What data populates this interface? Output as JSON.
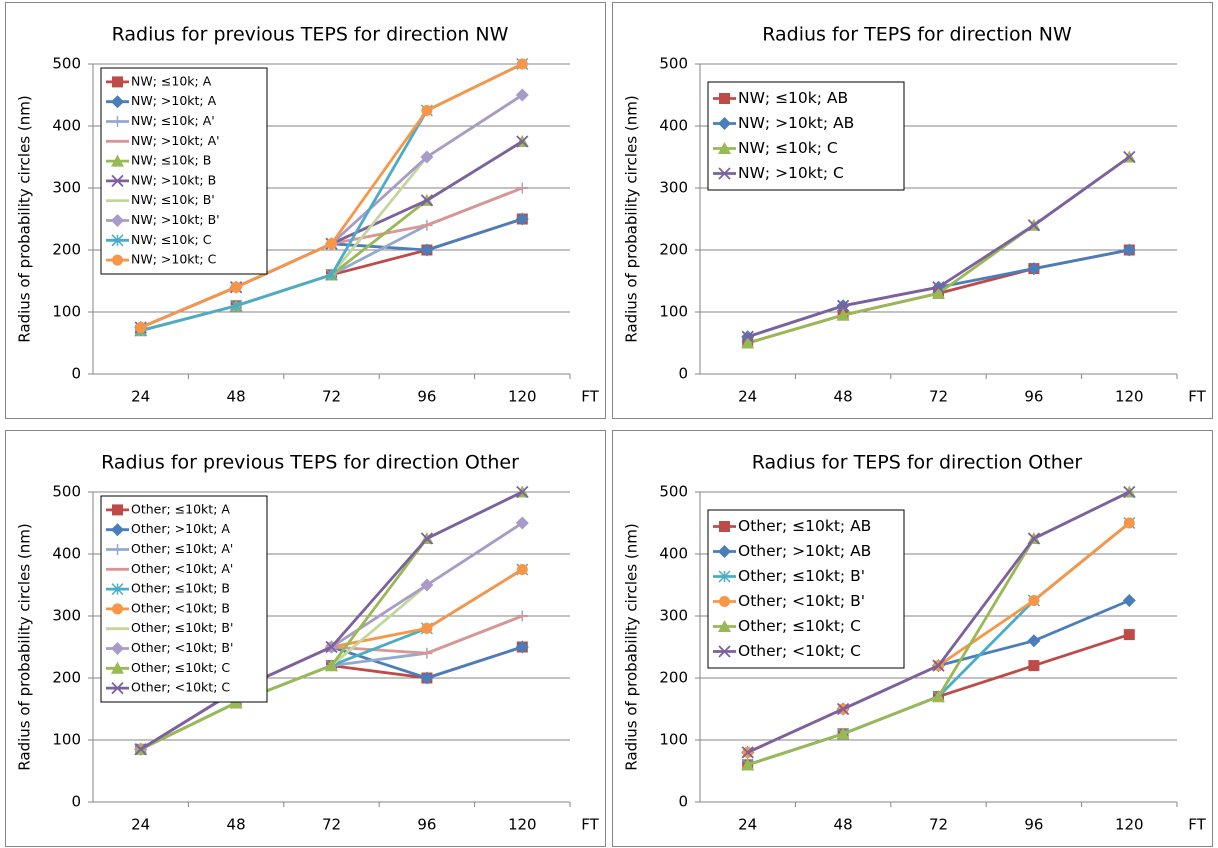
{
  "chart_data": [
    {
      "type": "line",
      "title": "Radius for previous TEPS for direction NW",
      "y_label": "Radius of probability circles (nm)",
      "x_label": "FT",
      "categories": [
        "24",
        "48",
        "72",
        "96",
        "120"
      ],
      "ylim": [
        0,
        500
      ],
      "yticks": [
        0,
        100,
        200,
        300,
        400,
        500
      ],
      "grid": true,
      "legend": "upper left",
      "series": [
        {
          "name": "NW; ≤10k; A",
          "color": "#be4b48",
          "marker": "square",
          "values": [
            70,
            110,
            160,
            200,
            250
          ]
        },
        {
          "name": "NW; >10kt; A",
          "color": "#4a7ebb",
          "marker": "diamond",
          "values": [
            75,
            140,
            210,
            200,
            250
          ]
        },
        {
          "name": "NW; ≤10k; A'",
          "color": "#93a9cf",
          "marker": "plus",
          "values": [
            70,
            110,
            160,
            240,
            300
          ]
        },
        {
          "name": "NW; >10kt; A'",
          "color": "#d99694",
          "marker": "dash",
          "values": [
            75,
            140,
            210,
            240,
            300
          ]
        },
        {
          "name": "NW; ≤10k; B",
          "color": "#98b954",
          "marker": "triangle",
          "values": [
            70,
            110,
            160,
            280,
            375
          ]
        },
        {
          "name": "NW; >10kt; B",
          "color": "#7d60a0",
          "marker": "x",
          "values": [
            75,
            140,
            210,
            280,
            375
          ]
        },
        {
          "name": "NW; ≤10k; B'",
          "color": "#c3d69b",
          "marker": "none",
          "values": [
            70,
            110,
            160,
            350,
            450
          ]
        },
        {
          "name": "NW; >10kt; B'",
          "color": "#a99bc7",
          "marker": "diamond",
          "values": [
            75,
            140,
            210,
            350,
            450
          ]
        },
        {
          "name": "NW; ≤10k; C",
          "color": "#4bacc6",
          "marker": "asterisk",
          "values": [
            70,
            110,
            160,
            425,
            500
          ]
        },
        {
          "name": "NW; >10kt; C",
          "color": "#f79646",
          "marker": "circle",
          "values": [
            75,
            140,
            210,
            425,
            500
          ]
        }
      ]
    },
    {
      "type": "line",
      "title": "Radius for TEPS for direction NW",
      "y_label": "Radius of probability circles (nm)",
      "x_label": "FT",
      "categories": [
        "24",
        "48",
        "72",
        "96",
        "120"
      ],
      "ylim": [
        0,
        500
      ],
      "yticks": [
        0,
        100,
        200,
        300,
        400,
        500
      ],
      "grid": true,
      "legend": "upper left",
      "series": [
        {
          "name": "NW; ≤10k; AB",
          "color": "#be4b48",
          "marker": "square",
          "values": [
            50,
            95,
            130,
            170,
            200
          ]
        },
        {
          "name": "NW; >10kt; AB",
          "color": "#4a7ebb",
          "marker": "diamond",
          "values": [
            60,
            110,
            140,
            170,
            200
          ]
        },
        {
          "name": "NW; ≤10k; C",
          "color": "#98b954",
          "marker": "triangle",
          "values": [
            50,
            95,
            130,
            240,
            350
          ]
        },
        {
          "name": "NW; >10kt; C",
          "color": "#7d60a0",
          "marker": "x",
          "values": [
            60,
            110,
            140,
            240,
            350
          ]
        }
      ]
    },
    {
      "type": "line",
      "title": "Radius for previous TEPS for direction Other",
      "y_label": "Radius of probability circles (nm)",
      "x_label": "FT",
      "categories": [
        "24",
        "48",
        "72",
        "96",
        "120"
      ],
      "ylim": [
        0,
        500
      ],
      "yticks": [
        0,
        100,
        200,
        300,
        400,
        500
      ],
      "grid": true,
      "legend": "upper left",
      "series": [
        {
          "name": "Other; ≤10kt; A",
          "color": "#be4b48",
          "marker": "square",
          "values": [
            85,
            160,
            220,
            200,
            250
          ]
        },
        {
          "name": "Other; >10kt; A",
          "color": "#4a7ebb",
          "marker": "diamond",
          "values": [
            85,
            180,
            250,
            200,
            250
          ]
        },
        {
          "name": "Other; ≤10kt; A'",
          "color": "#93a9cf",
          "marker": "plus",
          "values": [
            85,
            160,
            220,
            240,
            300
          ]
        },
        {
          "name": "Other; <10kt; A'",
          "color": "#d99694",
          "marker": "dash",
          "values": [
            85,
            180,
            250,
            240,
            300
          ]
        },
        {
          "name": "Other; ≤10kt; B",
          "color": "#4bacc6",
          "marker": "asterisk",
          "values": [
            85,
            160,
            220,
            280,
            375
          ]
        },
        {
          "name": "Other; <10kt; B",
          "color": "#f79646",
          "marker": "circle",
          "values": [
            85,
            180,
            250,
            280,
            375
          ]
        },
        {
          "name": "Other; ≤10kt; B'",
          "color": "#c3d69b",
          "marker": "none",
          "values": [
            85,
            160,
            220,
            350,
            450
          ]
        },
        {
          "name": "Other; <10kt; B'",
          "color": "#a99bc7",
          "marker": "diamond",
          "values": [
            85,
            180,
            250,
            350,
            450
          ]
        },
        {
          "name": "Other; ≤10kt; C",
          "color": "#98b954",
          "marker": "triangle",
          "values": [
            85,
            160,
            220,
            425,
            500
          ]
        },
        {
          "name": "Other; <10kt; C",
          "color": "#7d60a0",
          "marker": "x",
          "values": [
            85,
            180,
            250,
            425,
            500
          ]
        }
      ]
    },
    {
      "type": "line",
      "title": "Radius for TEPS for direction Other",
      "y_label": "Radius of probability circles (nm)",
      "x_label": "FT",
      "categories": [
        "24",
        "48",
        "72",
        "96",
        "120"
      ],
      "ylim": [
        0,
        500
      ],
      "yticks": [
        0,
        100,
        200,
        300,
        400,
        500
      ],
      "grid": true,
      "legend": "upper left",
      "series": [
        {
          "name": "Other; ≤10kt; AB",
          "color": "#be4b48",
          "marker": "square",
          "values": [
            60,
            110,
            170,
            220,
            270
          ]
        },
        {
          "name": "Other; >10kt; AB",
          "color": "#4a7ebb",
          "marker": "diamond",
          "values": [
            80,
            150,
            220,
            260,
            325
          ]
        },
        {
          "name": "Other; ≤10kt; B'",
          "color": "#4bacc6",
          "marker": "asterisk",
          "values": [
            60,
            110,
            170,
            325,
            450
          ]
        },
        {
          "name": "Other; <10kt; B'",
          "color": "#f79646",
          "marker": "circle",
          "values": [
            80,
            150,
            220,
            325,
            450
          ]
        },
        {
          "name": "Other; ≤10kt; C",
          "color": "#98b954",
          "marker": "triangle",
          "values": [
            60,
            110,
            170,
            425,
            500
          ]
        },
        {
          "name": "Other; <10kt; C",
          "color": "#7d60a0",
          "marker": "x",
          "values": [
            80,
            150,
            220,
            425,
            500
          ]
        }
      ]
    }
  ]
}
